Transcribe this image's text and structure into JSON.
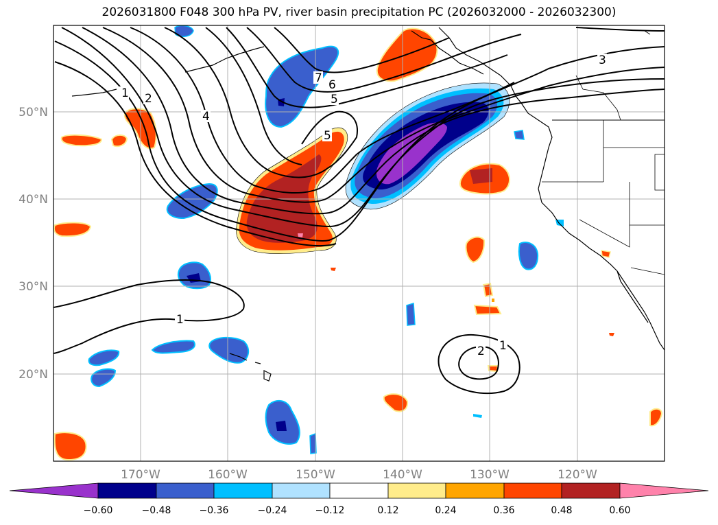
{
  "title": "2026031800 F048 300 hPa PV, river basin precipitation PC (2026032000 - 2026032300)",
  "map": {
    "lon_range": [
      -180,
      -110
    ],
    "lat_range": [
      10,
      60
    ],
    "lat_labels": [
      "50°N",
      "40°N",
      "30°N",
      "20°N"
    ],
    "lon_labels": [
      "170°W",
      "160°W",
      "150°W",
      "140°W",
      "130°W",
      "120°W"
    ],
    "contour_labels": [
      "1",
      "2",
      "4",
      "7",
      "6",
      "5",
      "5",
      "3",
      "1",
      "2",
      "1"
    ]
  },
  "colorbar": {
    "ticks": [
      "−0.60",
      "−0.48",
      "−0.36",
      "−0.24",
      "−0.12",
      "0.12",
      "0.24",
      "0.36",
      "0.48",
      "0.60"
    ],
    "colors": [
      "#9932cc",
      "#00008b",
      "#3a5fcd",
      "#00bfff",
      "#b0e2ff",
      "#ffffff",
      "#ffec8b",
      "#ffa500",
      "#ff4500",
      "#b22222",
      "#ff82ab"
    ]
  }
}
